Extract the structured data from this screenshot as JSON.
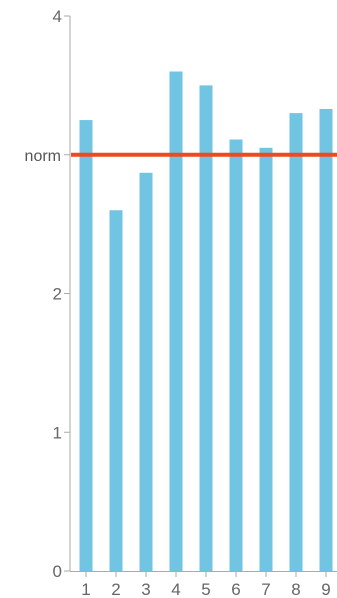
{
  "chart_data": {
    "type": "bar",
    "title": "",
    "xlabel": "",
    "ylabel": "",
    "categories": [
      "1",
      "2",
      "3",
      "4",
      "5",
      "6",
      "7",
      "8",
      "9"
    ],
    "values": [
      3.25,
      2.6,
      2.87,
      3.6,
      3.5,
      3.11,
      3.05,
      3.3,
      3.33
    ],
    "ylim": [
      0,
      4
    ],
    "y_ticks": [
      0,
      1,
      2,
      4
    ],
    "y_tick_labels": [
      "0",
      "1",
      "2",
      "4"
    ],
    "grid": false,
    "reference_line": {
      "label": "norm",
      "value": 3.0
    },
    "colors": {
      "bar": "#72c4e3",
      "reference_line": "#ee4b1d",
      "axis": "#aaaaaa"
    }
  }
}
